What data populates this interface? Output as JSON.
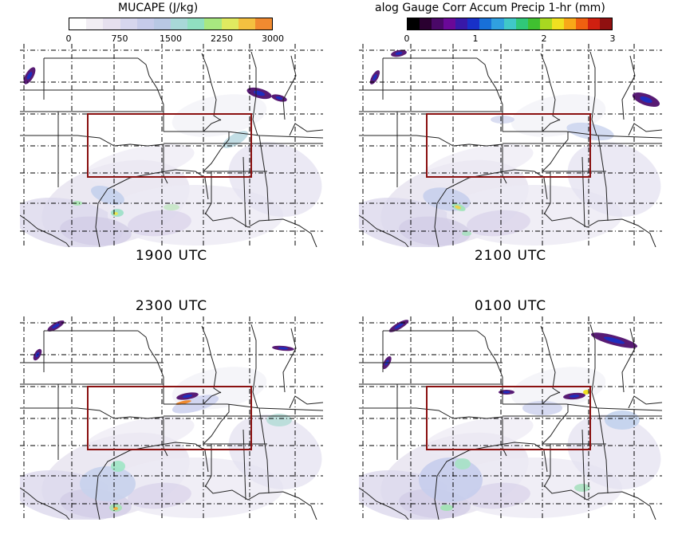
{
  "colorbars": [
    {
      "title": "MUCAPE (J/kg)",
      "ticks": [
        "0",
        "750",
        "1500",
        "2250",
        "3000"
      ],
      "colors": [
        "#ffffff",
        "#f2eef4",
        "#e6e0ee",
        "#d6d6ee",
        "#c6cbea",
        "#b8c8e4",
        "#a8d8d8",
        "#90e0c0",
        "#a8e880",
        "#e0ea60",
        "#f4c040",
        "#f08a30"
      ]
    },
    {
      "title": "alog Gauge Corr Accum Precip 1-hr (mm)",
      "ticks": [
        "0",
        "1",
        "2",
        "3"
      ],
      "colors": [
        "#000000",
        "#2a0030",
        "#4a0868",
        "#6a0898",
        "#3818a8",
        "#1830c8",
        "#1870d8",
        "#30a0e0",
        "#40c8c8",
        "#30c878",
        "#40c030",
        "#a8d820",
        "#f0e020",
        "#f8a818",
        "#f06010",
        "#d02010",
        "#901010"
      ]
    }
  ],
  "panels": [
    {
      "label": "1900 UTC"
    },
    {
      "label": "2100 UTC"
    },
    {
      "label": "2300 UTC"
    },
    {
      "label": "0100 UTC"
    }
  ]
}
